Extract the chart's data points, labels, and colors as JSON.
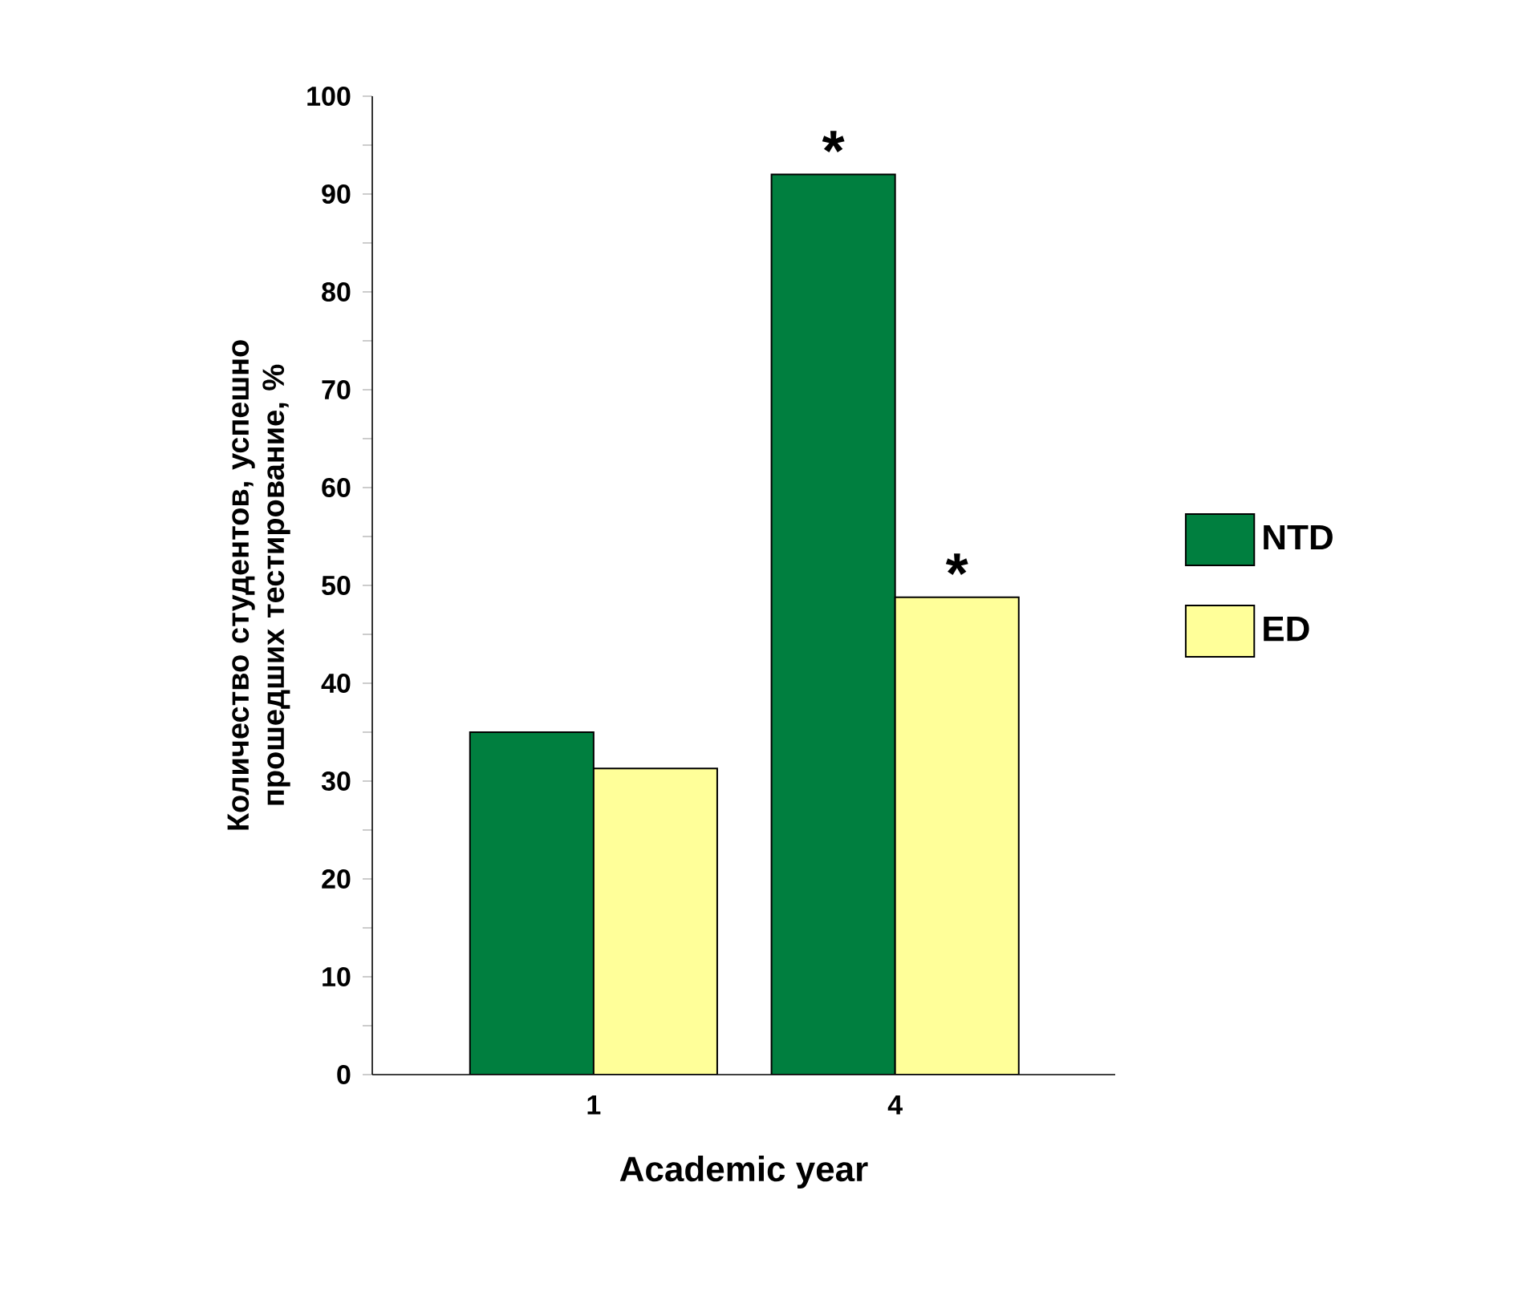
{
  "chart_data": {
    "type": "bar",
    "xlabel": "Academic year",
    "ylabel": "Количество студентов, успешно прошедших тестирование, %",
    "categories": [
      "1",
      "4"
    ],
    "series": [
      {
        "name": "NTD",
        "color": "#007f3f",
        "values": [
          35,
          92
        ]
      },
      {
        "name": "ED",
        "color": "#ffff99",
        "values": [
          31.3,
          48.8
        ]
      }
    ],
    "ylim": [
      0,
      100
    ],
    "yticks": [
      0,
      {
        "value": 5,
        "label": null
      },
      10,
      {
        "value": 15,
        "label": null
      },
      20,
      {
        "value": 25,
        "label": null
      },
      30,
      {
        "value": 35,
        "label": null
      },
      40,
      {
        "value": 45,
        "label": null
      },
      50,
      {
        "value": 55,
        "label": null
      },
      60,
      {
        "value": 65,
        "label": null
      },
      70,
      {
        "value": 75,
        "label": null
      },
      80,
      {
        "value": 85,
        "label": null
      },
      90,
      {
        "value": 95,
        "label": null
      },
      100
    ],
    "annotations": [
      {
        "text": "*",
        "x": "4",
        "y": 92
      },
      {
        "text": "*",
        "x": "4",
        "y": 48.8
      }
    ],
    "legend": "right",
    "grid": false
  }
}
